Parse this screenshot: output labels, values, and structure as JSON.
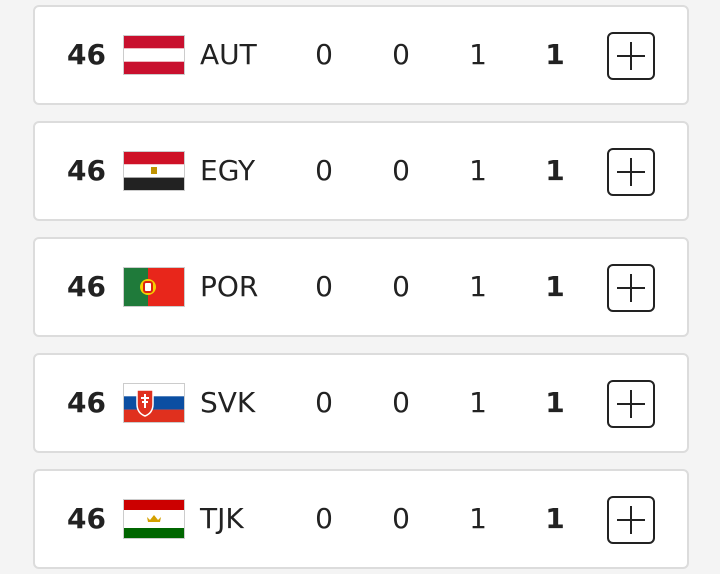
{
  "rows": [
    {
      "rank": 46,
      "country": "AUT",
      "gold": 0,
      "silver": 0,
      "bronze": 1,
      "total": 1
    },
    {
      "rank": 46,
      "country": "EGY",
      "gold": 0,
      "silver": 0,
      "bronze": 1,
      "total": 1
    },
    {
      "rank": 46,
      "country": "POR",
      "gold": 0,
      "silver": 0,
      "bronze": 1,
      "total": 1
    },
    {
      "rank": 46,
      "country": "SVK",
      "gold": 0,
      "silver": 0,
      "bronze": 1,
      "total": 1
    },
    {
      "rank": 46,
      "country": "TJK",
      "gold": 0,
      "silver": 0,
      "bronze": 1,
      "total": 1
    }
  ]
}
